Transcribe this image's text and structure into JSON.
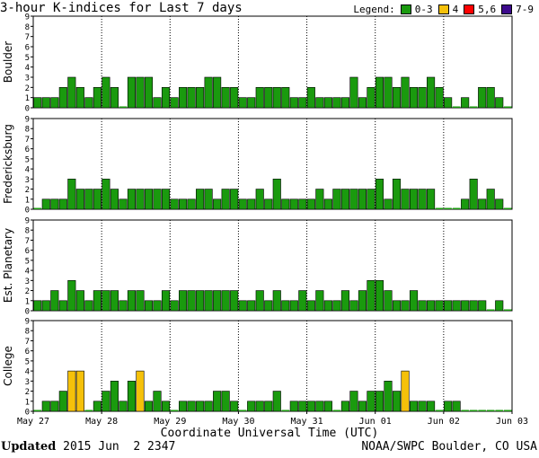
{
  "title": "3-hour K-indices for Last 7 days",
  "legend": {
    "label": "Legend:",
    "items": [
      {
        "label": "0-3",
        "color": "#1a9a0e"
      },
      {
        "label": "4",
        "color": "#f5c10a"
      },
      {
        "label": "5,6",
        "color": "#ff0000"
      },
      {
        "label": "7-9",
        "color": "#3d0a8c"
      }
    ]
  },
  "xlabel": "Coordinate Universal Time (UTC)",
  "footer": {
    "updated_label": "Updated",
    "updated_value": " 2015 Jun  2 2347",
    "agency": "NOAA/SWPC Boulder, CO USA"
  },
  "chart_data": {
    "type": "bar",
    "x_ticks": [
      "May 27",
      "May 28",
      "May 29",
      "May 30",
      "May 31",
      "Jun 01",
      "Jun 02",
      "Jun 03"
    ],
    "y_ticks": [
      "0",
      "1",
      "2",
      "3",
      "4",
      "5",
      "6",
      "7",
      "8",
      "9"
    ],
    "ylim": [
      0,
      9
    ],
    "intervals": 56,
    "panels": [
      {
        "ylabel": "Boulder",
        "values": [
          1,
          1,
          1,
          2,
          3,
          2,
          1,
          2,
          3,
          2,
          0,
          3,
          3,
          3,
          1,
          2,
          1,
          2,
          2,
          2,
          3,
          3,
          2,
          2,
          1,
          1,
          2,
          2,
          2,
          2,
          1,
          1,
          2,
          1,
          1,
          1,
          1,
          3,
          1,
          2,
          3,
          3,
          2,
          3,
          2,
          2,
          3,
          2,
          1,
          0,
          1,
          0,
          2,
          2,
          1,
          0
        ]
      },
      {
        "ylabel": "Fredericksburg",
        "values": [
          0,
          1,
          1,
          1,
          3,
          2,
          2,
          2,
          3,
          2,
          1,
          2,
          2,
          2,
          2,
          2,
          1,
          1,
          1,
          2,
          2,
          1,
          2,
          2,
          1,
          1,
          2,
          1,
          3,
          1,
          1,
          1,
          1,
          2,
          1,
          2,
          2,
          2,
          2,
          2,
          3,
          1,
          3,
          2,
          2,
          2,
          2,
          0,
          0,
          0,
          1,
          3,
          1,
          2,
          1,
          0
        ]
      },
      {
        "ylabel": "Est. Planetary",
        "values": [
          1,
          1,
          2,
          1,
          3,
          2,
          1,
          2,
          2,
          2,
          1,
          2,
          2,
          1,
          1,
          2,
          1,
          2,
          2,
          2,
          2,
          2,
          2,
          2,
          1,
          1,
          2,
          1,
          2,
          1,
          1,
          2,
          1,
          2,
          1,
          1,
          2,
          1,
          2,
          3,
          3,
          2,
          1,
          1,
          2,
          1,
          1,
          1,
          1,
          1,
          1,
          1,
          1,
          0,
          1,
          0
        ]
      },
      {
        "ylabel": "College",
        "values": [
          0,
          1,
          1,
          2,
          4,
          4,
          0,
          1,
          2,
          3,
          1,
          3,
          4,
          1,
          2,
          1,
          0,
          1,
          1,
          1,
          1,
          2,
          2,
          1,
          0,
          1,
          1,
          1,
          2,
          0,
          1,
          1,
          1,
          1,
          1,
          0,
          1,
          2,
          1,
          2,
          2,
          3,
          2,
          4,
          1,
          1,
          1,
          0,
          1,
          1,
          0,
          0,
          0,
          0,
          0,
          0
        ]
      }
    ]
  }
}
